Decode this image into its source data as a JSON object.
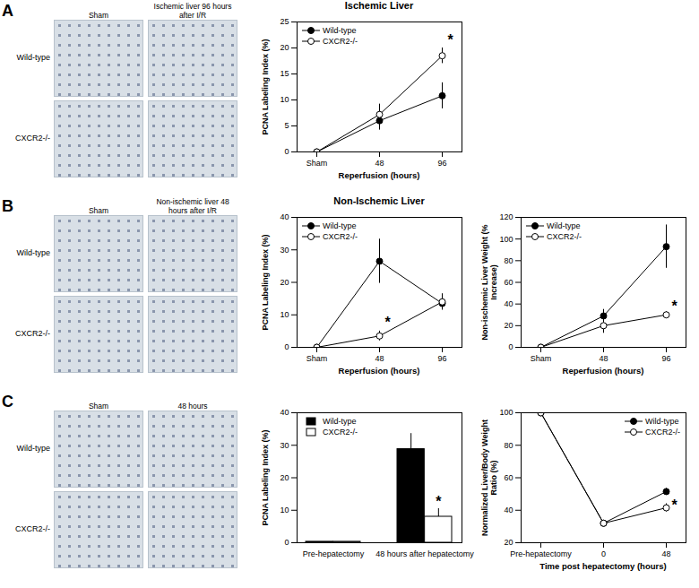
{
  "chart_data": [
    {
      "type": "line",
      "title": "Ischemic Liver",
      "x_label": "Reperfusion (hours)",
      "y_label": "PCNA Labeling Index (%)",
      "categories": [
        "Sham",
        "48",
        "96"
      ],
      "series": [
        {
          "name": "Wild-type",
          "color": "#000000",
          "marker": "circle",
          "values": [
            0,
            6,
            10.8
          ],
          "errors": [
            0,
            1.8,
            2.5
          ]
        },
        {
          "name": "CXCR2-/-",
          "color": "#ffffff",
          "marker": "circle",
          "values": [
            0,
            7.2,
            18.5
          ],
          "errors": [
            0,
            2,
            1.5
          ]
        }
      ],
      "ylim": [
        0,
        25
      ],
      "yticks": [
        0,
        5,
        10,
        15,
        20,
        25
      ],
      "legend": "top-left",
      "annotations": [
        {
          "text": "*",
          "x": "96",
          "y": 21.5
        }
      ]
    },
    {
      "type": "line",
      "title": "Non-Ischemic Liver",
      "x_label": "Reperfusion (hours)",
      "y_label": "PCNA Labeling Index (%)",
      "categories": [
        "Sham",
        "48",
        "96"
      ],
      "series": [
        {
          "name": "Wild-type",
          "color": "#000000",
          "marker": "circle",
          "values": [
            0,
            26.5,
            13.5
          ],
          "errors": [
            0,
            6.8,
            2
          ]
        },
        {
          "name": "CXCR2-/-",
          "color": "#ffffff",
          "marker": "circle",
          "values": [
            0,
            3.5,
            14
          ],
          "errors": [
            0,
            1.5,
            2.5
          ]
        }
      ],
      "ylim": [
        0,
        40
      ],
      "yticks": [
        0,
        10,
        20,
        30,
        40
      ],
      "legend": "top-left",
      "annotations": [
        {
          "text": "*",
          "x": "48",
          "y": 7.5
        }
      ]
    },
    {
      "type": "line",
      "x_label": "Reperfusion (hours)",
      "y_label": "Non-ischemic Liver Weight (% Increase)",
      "categories": [
        "Sham",
        "48",
        "96"
      ],
      "series": [
        {
          "name": "Wild-type",
          "color": "#000000",
          "marker": "circle",
          "values": [
            0,
            29,
            93
          ],
          "errors": [
            0,
            6,
            20
          ]
        },
        {
          "name": "CXCR2-/-",
          "color": "#ffffff",
          "marker": "circle",
          "values": [
            0,
            20,
            30
          ],
          "errors": [
            0,
            7,
            3
          ]
        }
      ],
      "ylim": [
        0,
        120
      ],
      "yticks": [
        0,
        20,
        40,
        60,
        80,
        100,
        120
      ],
      "legend": "top-left",
      "annotations": [
        {
          "text": "*",
          "x": "96",
          "y": 38
        }
      ]
    },
    {
      "type": "bar",
      "y_label": "PCNA Labeling Index (%)",
      "categories": [
        "Pre-hepatectomy",
        "48 hours after hepatectomy"
      ],
      "series": [
        {
          "name": "Wild-type",
          "color": "#000000",
          "values": [
            0.3,
            28.8
          ],
          "errors": [
            0,
            4.8
          ]
        },
        {
          "name": "CXCR2-/-",
          "color": "#ffffff",
          "values": [
            0.3,
            8
          ],
          "errors": [
            0,
            2.5
          ]
        }
      ],
      "ylim": [
        0,
        40
      ],
      "yticks": [
        0,
        10,
        20,
        30,
        40
      ],
      "legend": "top-left",
      "annotations": [
        {
          "text": "*",
          "x": "48 hours after hepatectomy",
          "series": "CXCR2-/-",
          "y": 12.5
        }
      ]
    },
    {
      "type": "line",
      "x_label": "Time post hepatectomy (hours)",
      "y_label": "Normalized Liver/Body Weight Ratio (%)",
      "categories": [
        "Pre-hepatectomy",
        "0",
        "48"
      ],
      "series": [
        {
          "name": "Wild-type",
          "color": "#000000",
          "marker": "circle",
          "values": [
            100,
            32,
            51.5
          ],
          "errors": [
            0,
            1,
            2
          ]
        },
        {
          "name": "CXCR2-/-",
          "color": "#ffffff",
          "marker": "circle",
          "values": [
            100,
            32,
            41.5
          ],
          "errors": [
            0,
            1,
            2.5
          ]
        }
      ],
      "ylim": [
        20,
        100
      ],
      "yticks": [
        20,
        40,
        60,
        80,
        100
      ],
      "legend": "top-right",
      "annotations": [
        {
          "text": "*",
          "x": "48",
          "y": 43
        }
      ]
    }
  ],
  "panels": [
    {
      "label": "A",
      "image_columns": [
        "Sham",
        "Ischemic liver 96 hours after I/R"
      ],
      "image_rows": [
        "Wild-type",
        "CXCR2-/-"
      ]
    },
    {
      "label": "B",
      "image_columns": [
        "Sham",
        "Non-ischemic liver 48 hours after I/R"
      ],
      "image_rows": [
        "Wild-type",
        "CXCR2-/-"
      ]
    },
    {
      "label": "C",
      "image_columns": [
        "Sham",
        "48 hours"
      ],
      "image_rows": [
        "Wild-type",
        "CXCR2-/-"
      ]
    }
  ]
}
